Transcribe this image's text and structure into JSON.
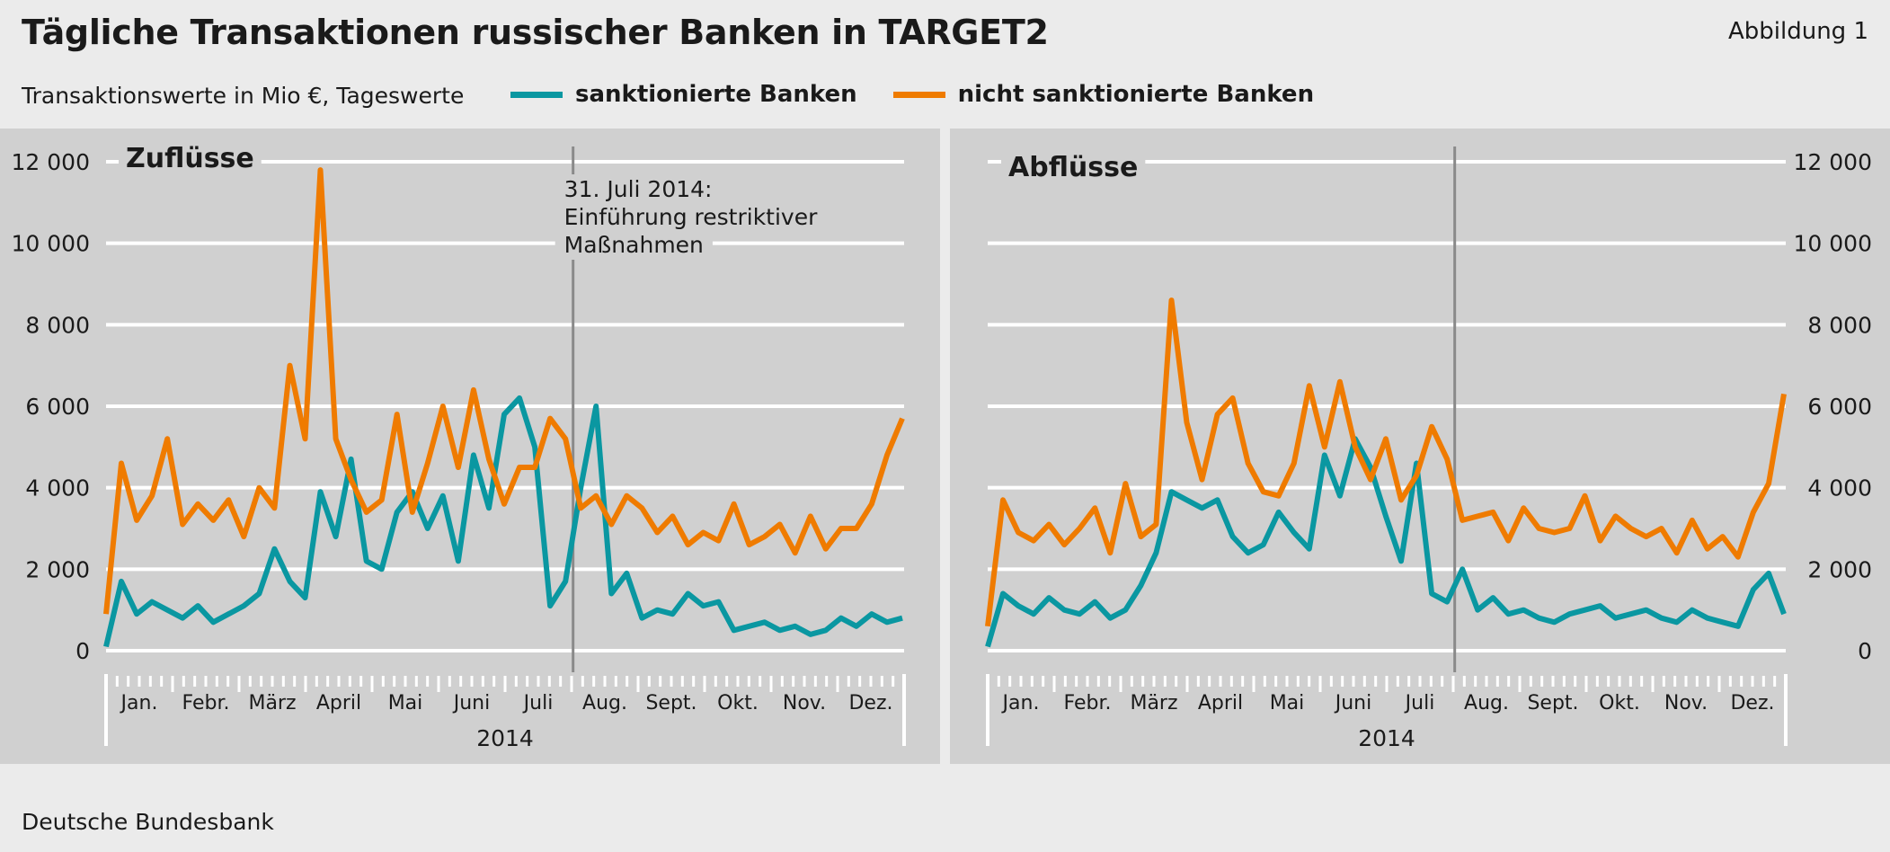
{
  "header": {
    "title": "Tägliche Transaktionen russischer Banken in TARGET2",
    "figure_label": "Abbildung 1",
    "subtitle": "Transaktionswerte in Mio €, Tageswerte"
  },
  "footer": {
    "source": "Deutsche Bundesbank"
  },
  "colors": {
    "sanctioned": "#0a97a1",
    "non_sanctioned": "#ef7b00",
    "panel_bg": "#d0d0d0",
    "page_bg": "#ebebeb",
    "grid": "#ffffff",
    "event_line": "#8a8a8a"
  },
  "legend": [
    {
      "name": "sanktionierte Banken",
      "color": "#0a97a1"
    },
    {
      "name": "nicht sanktionierte Banken",
      "color": "#ef7b00"
    }
  ],
  "chart_data": [
    {
      "type": "line",
      "panel": "Zuflüsse",
      "year": "2014",
      "ylim": [
        0,
        12000
      ],
      "yticks": [
        "0",
        "2 000",
        "4 000",
        "6 000",
        "8 000",
        "10 000",
        "12 000"
      ],
      "ytick_values": [
        0,
        2000,
        4000,
        6000,
        8000,
        10000,
        12000
      ],
      "ytick_side": "left",
      "grid": true,
      "x_unit": "week",
      "xlim": [
        0,
        52
      ],
      "months": [
        "Jan.",
        "Febr.",
        "März",
        "April",
        "Mai",
        "Juni",
        "Juli",
        "Aug.",
        "Sept.",
        "Okt.",
        "Nov.",
        "Dez."
      ],
      "event": {
        "x": 30.5,
        "label_lines": [
          "31. Juli 2014:",
          "Einführung restriktiver",
          "Maßnahmen"
        ]
      },
      "series": [
        {
          "name": "sanktionierte Banken",
          "x": [
            0,
            1,
            2,
            3,
            4,
            5,
            6,
            7,
            8,
            9,
            10,
            11,
            12,
            13,
            14,
            15,
            16,
            17,
            18,
            19,
            20,
            21,
            22,
            23,
            24,
            25,
            26,
            27,
            28,
            29,
            30,
            31,
            32,
            33,
            34,
            35,
            36,
            37,
            38,
            39,
            40,
            41,
            42,
            43,
            44,
            45,
            46,
            47,
            48,
            49,
            50,
            51,
            52
          ],
          "values": [
            100,
            1700,
            900,
            1200,
            1000,
            800,
            1100,
            700,
            900,
            1100,
            1400,
            2500,
            1700,
            1300,
            3900,
            2800,
            4700,
            2200,
            2000,
            3400,
            3900,
            3000,
            3800,
            2200,
            4800,
            3500,
            5800,
            6200,
            5000,
            1100,
            1700,
            4000,
            6000,
            1400,
            1900,
            800,
            1000,
            900,
            1400,
            1100,
            1200,
            500,
            600,
            700,
            500,
            600,
            400,
            500,
            800,
            600,
            900,
            700,
            800
          ]
        },
        {
          "name": "nicht sanktionierte Banken",
          "x": [
            0,
            1,
            2,
            3,
            4,
            5,
            6,
            7,
            8,
            9,
            10,
            11,
            12,
            13,
            14,
            15,
            16,
            17,
            18,
            19,
            20,
            21,
            22,
            23,
            24,
            25,
            26,
            27,
            28,
            29,
            30,
            31,
            32,
            33,
            34,
            35,
            36,
            37,
            38,
            39,
            40,
            41,
            42,
            43,
            44,
            45,
            46,
            47,
            48,
            49,
            50,
            51,
            52
          ],
          "values": [
            900,
            4600,
            3200,
            3800,
            5200,
            3100,
            3600,
            3200,
            3700,
            2800,
            4000,
            3500,
            7000,
            5200,
            11800,
            5200,
            4200,
            3400,
            3700,
            5800,
            3400,
            4600,
            6000,
            4500,
            6400,
            4700,
            3600,
            4500,
            4500,
            5700,
            5200,
            3500,
            3800,
            3100,
            3800,
            3500,
            2900,
            3300,
            2600,
            2900,
            2700,
            3600,
            2600,
            2800,
            3100,
            2400,
            3300,
            2500,
            3000,
            3000,
            3600,
            4800,
            5700
          ]
        }
      ]
    },
    {
      "type": "line",
      "panel": "Abflüsse",
      "year": "2014",
      "ylim": [
        0,
        12000
      ],
      "yticks": [
        "0",
        "2 000",
        "4 000",
        "6 000",
        "8 000",
        "10 000",
        "12 000"
      ],
      "ytick_values": [
        0,
        2000,
        4000,
        6000,
        8000,
        10000,
        12000
      ],
      "ytick_side": "right",
      "grid": true,
      "x_unit": "week",
      "xlim": [
        0,
        52
      ],
      "months": [
        "Jan.",
        "Febr.",
        "März",
        "April",
        "Mai",
        "Juni",
        "Juli",
        "Aug.",
        "Sept.",
        "Okt.",
        "Nov.",
        "Dez."
      ],
      "event": {
        "x": 30.5,
        "label_lines": []
      },
      "series": [
        {
          "name": "sanktionierte Banken",
          "x": [
            0,
            1,
            2,
            3,
            4,
            5,
            6,
            7,
            8,
            9,
            10,
            11,
            12,
            13,
            14,
            15,
            16,
            17,
            18,
            19,
            20,
            21,
            22,
            23,
            24,
            25,
            26,
            27,
            28,
            29,
            30,
            31,
            32,
            33,
            34,
            35,
            36,
            37,
            38,
            39,
            40,
            41,
            42,
            43,
            44,
            45,
            46,
            47,
            48,
            49,
            50,
            51,
            52
          ],
          "values": [
            100,
            1400,
            1100,
            900,
            1300,
            1000,
            900,
            1200,
            800,
            1000,
            1600,
            2400,
            3900,
            3700,
            3500,
            3700,
            2800,
            2400,
            2600,
            3400,
            2900,
            2500,
            4800,
            3800,
            5200,
            4500,
            3300,
            2200,
            4600,
            1400,
            1200,
            2000,
            1000,
            1300,
            900,
            1000,
            800,
            700,
            900,
            1000,
            1100,
            800,
            900,
            1000,
            800,
            700,
            1000,
            800,
            700,
            600,
            1500,
            1900,
            900
          ]
        },
        {
          "name": "nicht sanktionierte Banken",
          "x": [
            0,
            1,
            2,
            3,
            4,
            5,
            6,
            7,
            8,
            9,
            10,
            11,
            12,
            13,
            14,
            15,
            16,
            17,
            18,
            19,
            20,
            21,
            22,
            23,
            24,
            25,
            26,
            27,
            28,
            29,
            30,
            31,
            32,
            33,
            34,
            35,
            36,
            37,
            38,
            39,
            40,
            41,
            42,
            43,
            44,
            45,
            46,
            47,
            48,
            49,
            50,
            51,
            52
          ],
          "values": [
            600,
            3700,
            2900,
            2700,
            3100,
            2600,
            3000,
            3500,
            2400,
            4100,
            2800,
            3100,
            8600,
            5600,
            4200,
            5800,
            6200,
            4600,
            3900,
            3800,
            4600,
            6500,
            5000,
            6600,
            5000,
            4200,
            5200,
            3700,
            4300,
            5500,
            4700,
            3200,
            3300,
            3400,
            2700,
            3500,
            3000,
            2900,
            3000,
            3800,
            2700,
            3300,
            3000,
            2800,
            3000,
            2400,
            3200,
            2500,
            2800,
            2300,
            3400,
            4100,
            6300
          ]
        }
      ]
    }
  ]
}
